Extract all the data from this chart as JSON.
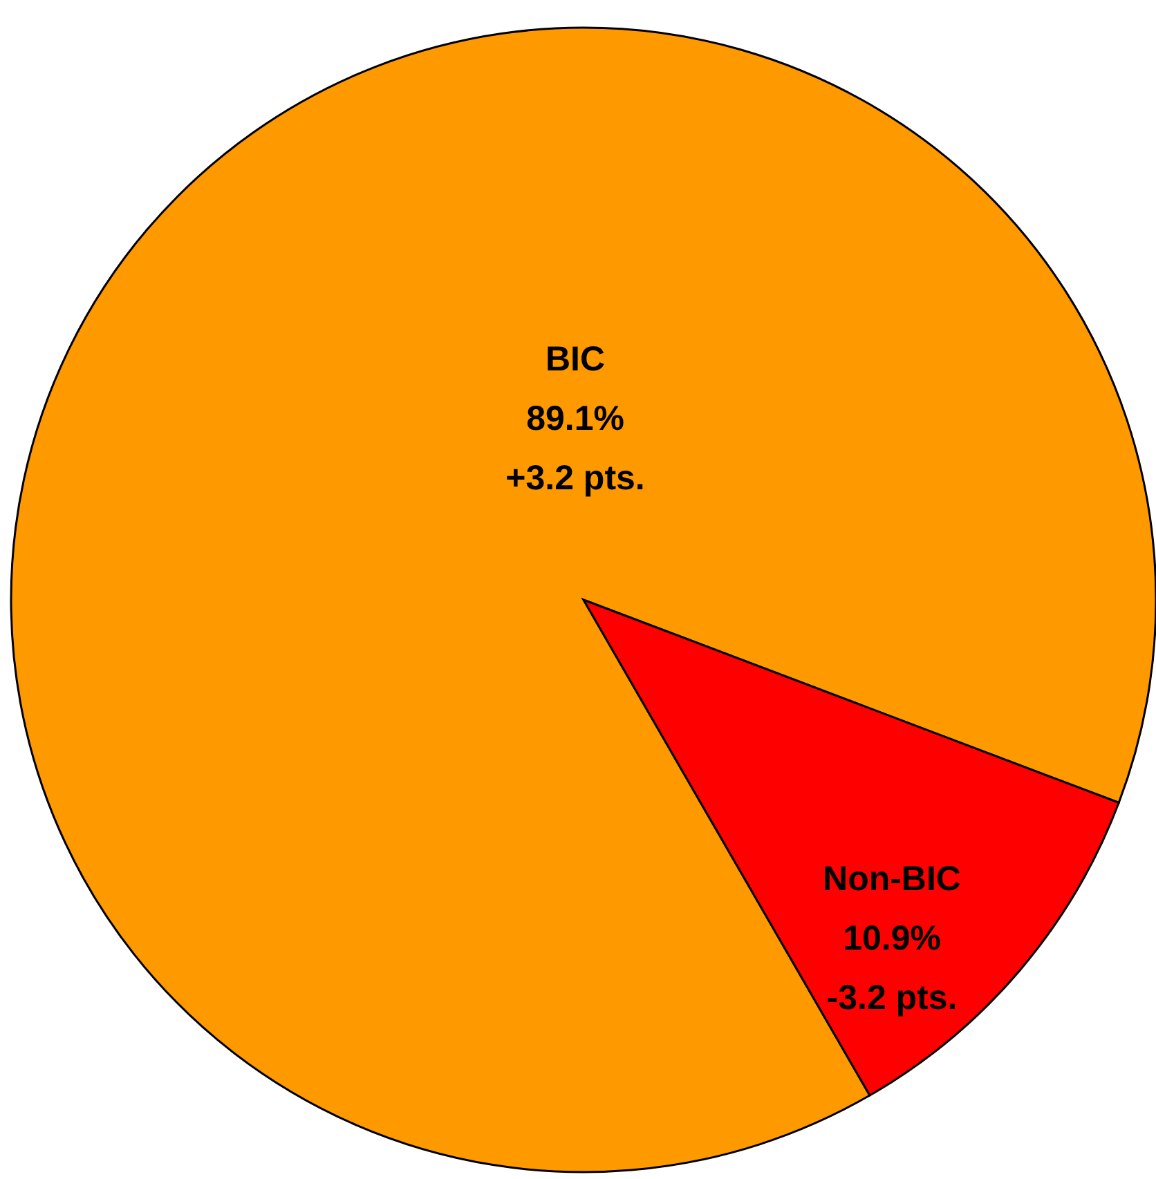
{
  "chart_data": {
    "type": "pie",
    "categories": [
      "BIC",
      "Non-BIC"
    ],
    "values": [
      89.1,
      10.9
    ],
    "colors": [
      "#ff9900",
      "#ff0000"
    ],
    "value_labels": [
      "89.1%",
      "10.9%"
    ],
    "annotations": [
      "+3.2 pts.",
      "-3.2 pts."
    ]
  }
}
